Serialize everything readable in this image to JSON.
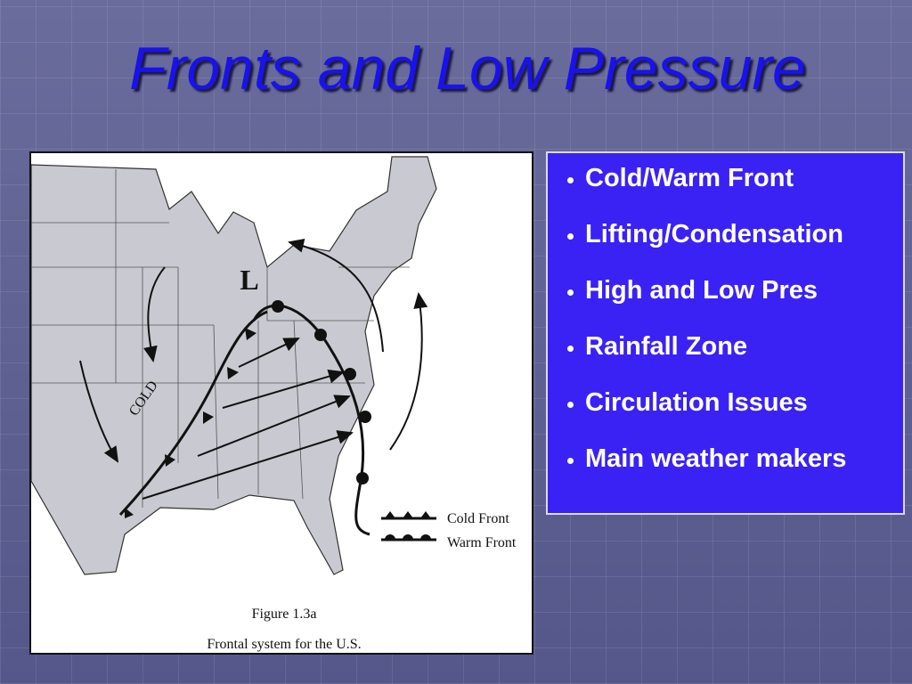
{
  "title": "Fronts and Low Pressure",
  "figure": {
    "low_label": "L",
    "cold_label": "COLD",
    "legend": [
      "Cold Front",
      "Warm Front"
    ],
    "caption": [
      "Figure 1.3a",
      "Frontal system for the U.S."
    ]
  },
  "bullets": [
    "Cold/Warm Front",
    "Lifting/Condensation",
    "High and Low Pres",
    "Rainfall Zone",
    "Circulation Issues",
    "Main weather makers"
  ]
}
